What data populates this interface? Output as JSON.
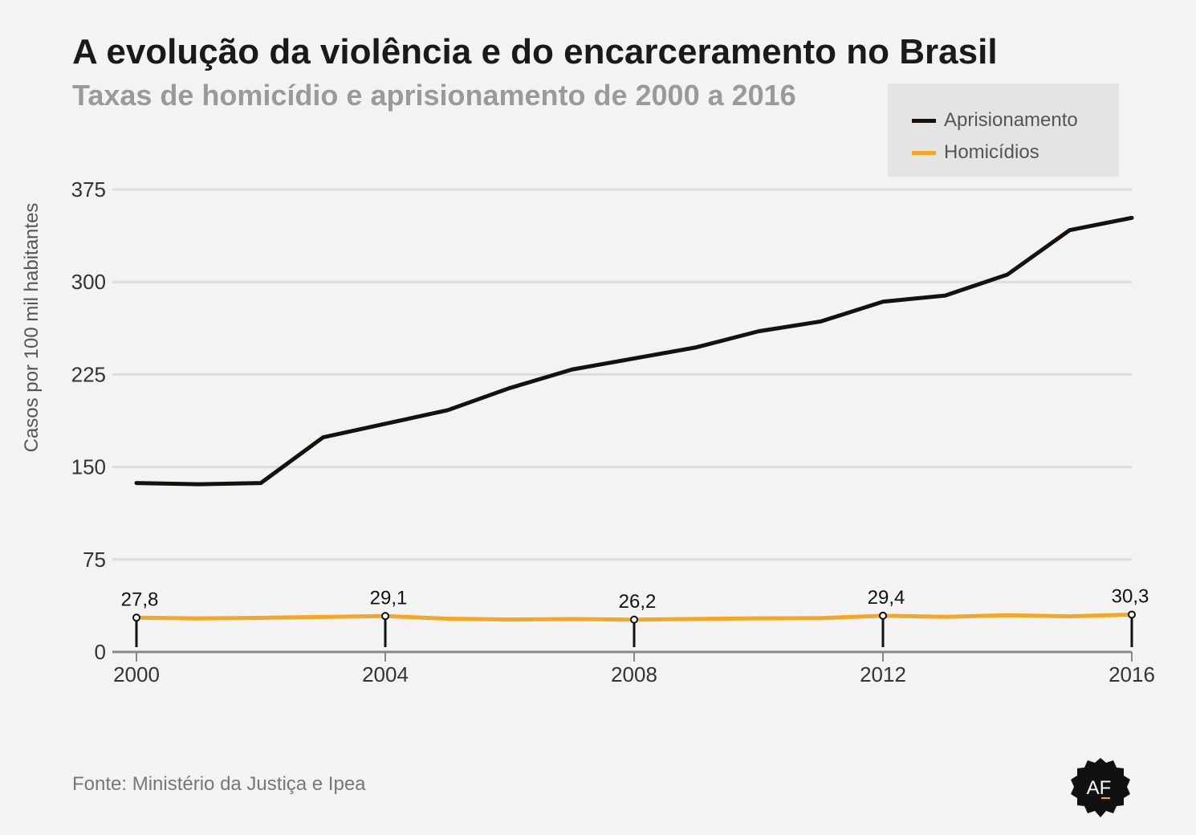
{
  "title": "A evolução da violência e do encarceramento no Brasil",
  "subtitle": "Taxas de homicídio e aprisionamento de 2000 a 2016",
  "source": "Fonte: Ministério da Justiça e Ipea",
  "logo_text": "AF",
  "legend": [
    {
      "label": "Aprisionamento",
      "color": "#16110c"
    },
    {
      "label": "Homicídios",
      "color": "#f5a623"
    }
  ],
  "chart_data": {
    "type": "line",
    "title": "A evolução da violência e do encarceramento no Brasil",
    "subtitle": "Taxas de homicídio e aprisionamento de 2000 a 2016",
    "xlabel": "",
    "ylabel": "Casos por 100 mil habitantes",
    "x": [
      2000,
      2001,
      2002,
      2003,
      2004,
      2005,
      2006,
      2007,
      2008,
      2009,
      2010,
      2011,
      2012,
      2013,
      2014,
      2015,
      2016
    ],
    "xticks": [
      "2000",
      "2004",
      "2008",
      "2012",
      "2016"
    ],
    "yticks": [
      "0",
      "75",
      "150",
      "225",
      "300",
      "375"
    ],
    "ylim": [
      0,
      375
    ],
    "grid": true,
    "legend_position": "top-right",
    "series": [
      {
        "name": "Aprisionamento",
        "color": "#16110c",
        "values": [
          137,
          136,
          137,
          174,
          185,
          196,
          214,
          229,
          238,
          247,
          260,
          268,
          284,
          289,
          306,
          342,
          352
        ]
      },
      {
        "name": "Homicídios",
        "color": "#f5a623",
        "values": [
          27.8,
          27.2,
          27.7,
          28.4,
          29.1,
          27.0,
          26.3,
          26.7,
          26.2,
          26.8,
          27.3,
          27.4,
          29.4,
          28.5,
          29.8,
          28.9,
          30.3
        ]
      }
    ],
    "annotations": [
      {
        "x": 2000,
        "label": "27,8"
      },
      {
        "x": 2004,
        "label": "29,1"
      },
      {
        "x": 2008,
        "label": "26,2"
      },
      {
        "x": 2012,
        "label": "29,4"
      },
      {
        "x": 2016,
        "label": "30,3"
      }
    ]
  }
}
